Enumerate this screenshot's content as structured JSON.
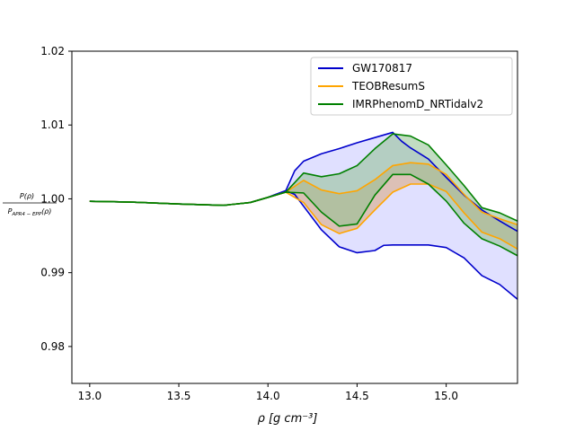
{
  "chart_data": {
    "type": "area",
    "xlabel": "ρ [g cm⁻³]",
    "ylabel_numerator": "P(ρ)",
    "ylabel_denominator": "P_APR4-EPP(ρ)",
    "ylabel_denominator_main": "P",
    "ylabel_denominator_sub": "APR4 − EPP",
    "ylabel_denominator_arg": "(ρ)",
    "xlim": [
      12.9,
      15.4
    ],
    "ylim": [
      0.975,
      1.02
    ],
    "x_ticks": [
      13.0,
      13.5,
      14.0,
      14.5,
      15.0
    ],
    "x_tick_labels": [
      "13.0",
      "13.5",
      "14.0",
      "14.5",
      "15.0"
    ],
    "y_ticks": [
      0.98,
      0.99,
      1.0,
      1.01,
      1.02
    ],
    "y_tick_labels": [
      "0.98",
      "0.99",
      "1.00",
      "1.01",
      "1.02"
    ],
    "grid": false,
    "legend_position": "top-right",
    "series": [
      {
        "name": "GW170817",
        "color": "#0000cc",
        "fill": "#ccccff",
        "upper": [
          [
            13.0,
            0.99967
          ],
          [
            13.25,
            0.99955
          ],
          [
            13.5,
            0.9993
          ],
          [
            13.75,
            0.99912
          ],
          [
            13.9,
            0.9995
          ],
          [
            14.0,
            1.0002
          ],
          [
            14.1,
            1.0011
          ],
          [
            14.15,
            1.0038
          ],
          [
            14.2,
            1.0051
          ],
          [
            14.3,
            1.0061
          ],
          [
            14.4,
            1.0068
          ],
          [
            14.5,
            1.0076
          ],
          [
            14.6,
            1.0083
          ],
          [
            14.7,
            1.009
          ],
          [
            14.75,
            1.0078
          ],
          [
            14.8,
            1.0069
          ],
          [
            14.9,
            1.0054
          ],
          [
            15.0,
            1.0029
          ],
          [
            15.1,
            1.0005
          ],
          [
            15.2,
            0.9985
          ],
          [
            15.3,
            0.997
          ],
          [
            15.4,
            0.9956
          ]
        ],
        "lower": [
          [
            13.0,
            0.99967
          ],
          [
            13.25,
            0.99955
          ],
          [
            13.5,
            0.9993
          ],
          [
            13.75,
            0.99912
          ],
          [
            13.9,
            0.9995
          ],
          [
            14.0,
            1.0002
          ],
          [
            14.1,
            1.0011
          ],
          [
            14.15,
            1.0006
          ],
          [
            14.2,
            0.999
          ],
          [
            14.3,
            0.9958
          ],
          [
            14.4,
            0.9935
          ],
          [
            14.5,
            0.9927
          ],
          [
            14.6,
            0.993
          ],
          [
            14.65,
            0.9937
          ],
          [
            14.7,
            0.99375
          ],
          [
            14.8,
            0.99375
          ],
          [
            14.9,
            0.99375
          ],
          [
            15.0,
            0.9934
          ],
          [
            15.1,
            0.992
          ],
          [
            15.2,
            0.9896
          ],
          [
            15.3,
            0.9884
          ],
          [
            15.4,
            0.9864
          ]
        ]
      },
      {
        "name": "TEOBResumS",
        "color": "#ffa500",
        "fill": "#d9a57a",
        "upper": [
          [
            13.0,
            0.99967
          ],
          [
            13.25,
            0.99955
          ],
          [
            13.5,
            0.9993
          ],
          [
            13.75,
            0.99912
          ],
          [
            13.9,
            0.9995
          ],
          [
            14.0,
            1.0002
          ],
          [
            14.1,
            1.0009
          ],
          [
            14.2,
            1.0025
          ],
          [
            14.3,
            1.0012
          ],
          [
            14.4,
            1.0007
          ],
          [
            14.5,
            1.0011
          ],
          [
            14.6,
            1.0026
          ],
          [
            14.7,
            1.0045
          ],
          [
            14.8,
            1.0049
          ],
          [
            14.9,
            1.0047
          ],
          [
            15.0,
            1.0033
          ],
          [
            15.1,
            1.0006
          ],
          [
            15.2,
            0.9982
          ],
          [
            15.3,
            0.9973
          ],
          [
            15.4,
            0.9965
          ]
        ],
        "lower": [
          [
            13.0,
            0.99967
          ],
          [
            13.25,
            0.99955
          ],
          [
            13.5,
            0.9993
          ],
          [
            13.75,
            0.99912
          ],
          [
            13.9,
            0.9995
          ],
          [
            14.0,
            1.0002
          ],
          [
            14.1,
            1.0009
          ],
          [
            14.2,
            0.9995
          ],
          [
            14.3,
            0.9965
          ],
          [
            14.4,
            0.9953
          ],
          [
            14.5,
            0.996
          ],
          [
            14.6,
            0.9985
          ],
          [
            14.7,
            1.0009
          ],
          [
            14.8,
            1.002
          ],
          [
            14.9,
            1.002
          ],
          [
            15.0,
            1.001
          ],
          [
            15.1,
            0.9981
          ],
          [
            15.2,
            0.9955
          ],
          [
            15.3,
            0.9946
          ],
          [
            15.4,
            0.9932
          ]
        ]
      },
      {
        "name": "IMRPhenomD_NRTidalv2",
        "color": "#008000",
        "fill": "#8fbf8f",
        "upper": [
          [
            13.0,
            0.99967
          ],
          [
            13.25,
            0.99955
          ],
          [
            13.5,
            0.9993
          ],
          [
            13.75,
            0.99912
          ],
          [
            13.9,
            0.9995
          ],
          [
            14.0,
            1.0002
          ],
          [
            14.1,
            1.0009
          ],
          [
            14.2,
            1.0035
          ],
          [
            14.3,
            1.003
          ],
          [
            14.4,
            1.0034
          ],
          [
            14.5,
            1.0045
          ],
          [
            14.6,
            1.0068
          ],
          [
            14.7,
            1.0088
          ],
          [
            14.8,
            1.0085
          ],
          [
            14.9,
            1.0073
          ],
          [
            15.0,
            1.0046
          ],
          [
            15.1,
            1.0018
          ],
          [
            15.2,
            0.9988
          ],
          [
            15.3,
            0.9981
          ],
          [
            15.4,
            0.997
          ]
        ],
        "lower": [
          [
            13.0,
            0.99967
          ],
          [
            13.25,
            0.99955
          ],
          [
            13.5,
            0.9993
          ],
          [
            13.75,
            0.99912
          ],
          [
            13.9,
            0.9995
          ],
          [
            14.0,
            1.0002
          ],
          [
            14.1,
            1.0009
          ],
          [
            14.2,
            1.0008
          ],
          [
            14.3,
            0.9982
          ],
          [
            14.4,
            0.9963
          ],
          [
            14.5,
            0.9966
          ],
          [
            14.6,
            1.0005
          ],
          [
            14.7,
            1.0033
          ],
          [
            14.8,
            1.0033
          ],
          [
            14.9,
            1.002
          ],
          [
            15.0,
            0.9997
          ],
          [
            15.1,
            0.9967
          ],
          [
            15.2,
            0.9946
          ],
          [
            15.3,
            0.9936
          ],
          [
            15.4,
            0.9923
          ]
        ]
      }
    ]
  }
}
